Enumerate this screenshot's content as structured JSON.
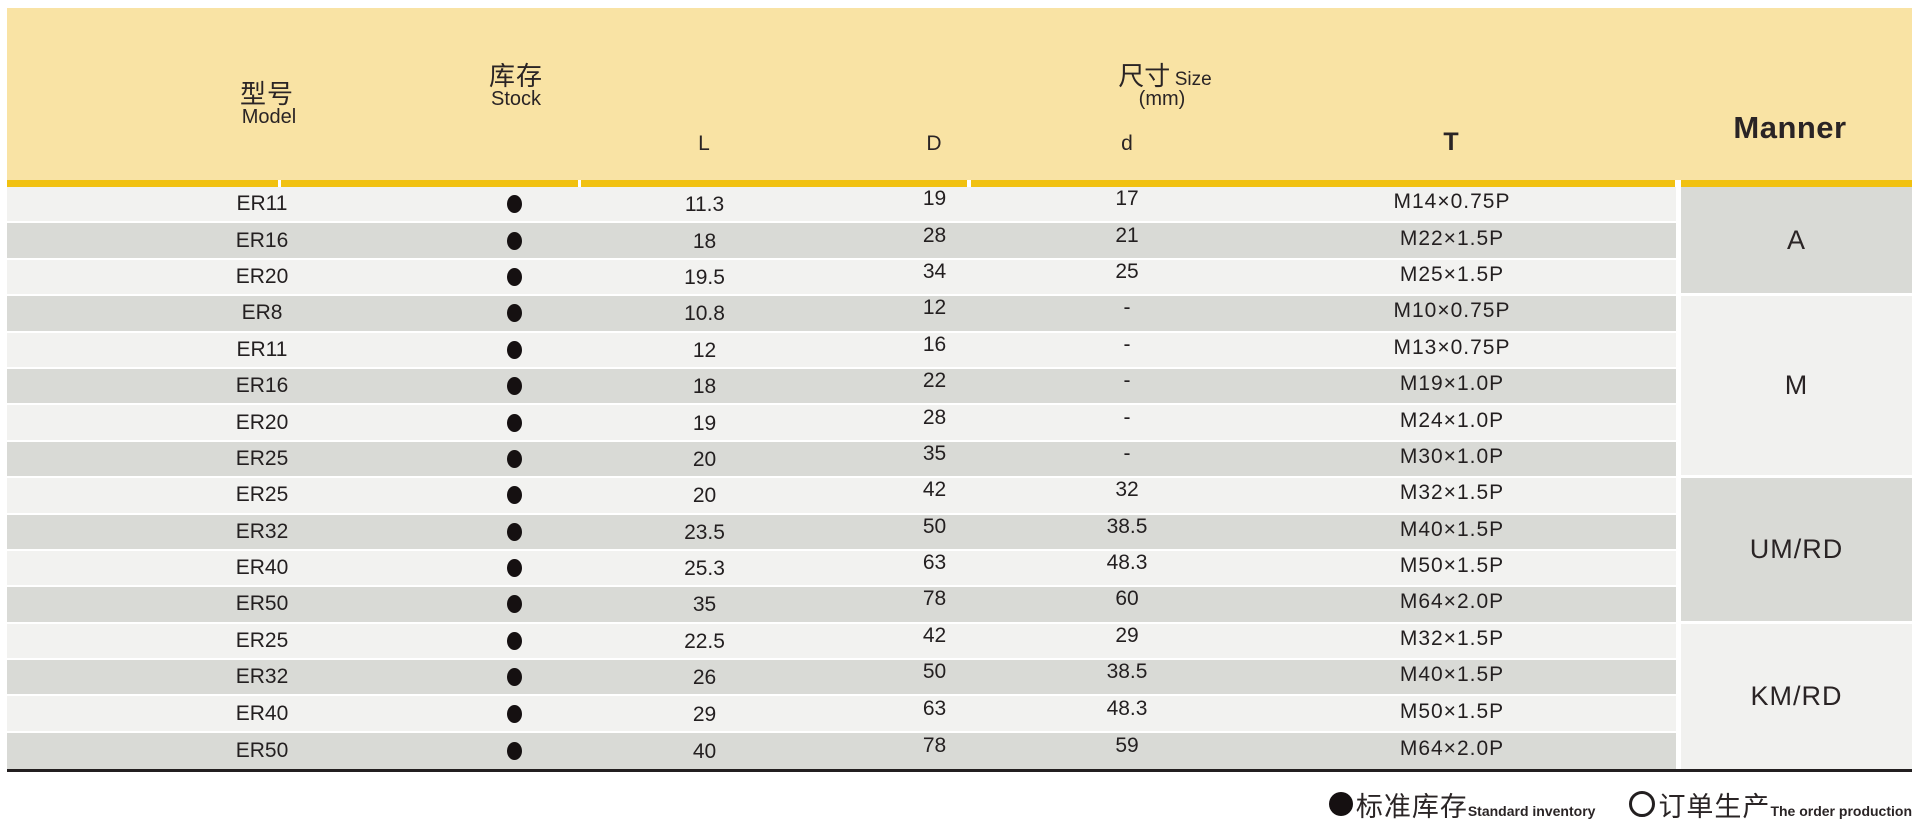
{
  "table": {
    "header": {
      "model_cn": "型号",
      "model_en": "Model",
      "stock_cn": "库存",
      "stock_en": "Stock",
      "size_cn": "尺寸",
      "size_en": "Size",
      "size_unit": "(mm)",
      "col_l": "L",
      "col_d_outer": "D",
      "col_d_inner": "d",
      "col_t": "T",
      "manner": "Manner"
    },
    "rows": [
      {
        "model": "ER11",
        "stock": "filled",
        "l": "11.3",
        "d_outer": "19",
        "d_inner": "17",
        "t": "M14×0.75P"
      },
      {
        "model": "ER16",
        "stock": "filled",
        "l": "18",
        "d_outer": "28",
        "d_inner": "21",
        "t": "M22×1.5P"
      },
      {
        "model": "ER20",
        "stock": "filled",
        "l": "19.5",
        "d_outer": "34",
        "d_inner": "25",
        "t": "M25×1.5P"
      },
      {
        "model": "ER8",
        "stock": "filled",
        "l": "10.8",
        "d_outer": "12",
        "d_inner": "-",
        "t": "M10×0.75P"
      },
      {
        "model": "ER11",
        "stock": "filled",
        "l": "12",
        "d_outer": "16",
        "d_inner": "-",
        "t": "M13×0.75P"
      },
      {
        "model": "ER16",
        "stock": "filled",
        "l": "18",
        "d_outer": "22",
        "d_inner": "-",
        "t": "M19×1.0P"
      },
      {
        "model": "ER20",
        "stock": "filled",
        "l": "19",
        "d_outer": "28",
        "d_inner": "-",
        "t": "M24×1.0P"
      },
      {
        "model": "ER25",
        "stock": "filled",
        "l": "20",
        "d_outer": "35",
        "d_inner": "-",
        "t": "M30×1.0P"
      },
      {
        "model": "ER25",
        "stock": "filled",
        "l": "20",
        "d_outer": "42",
        "d_inner": "32",
        "t": "M32×1.5P"
      },
      {
        "model": "ER32",
        "stock": "filled",
        "l": "23.5",
        "d_outer": "50",
        "d_inner": "38.5",
        "t": "M40×1.5P"
      },
      {
        "model": "ER40",
        "stock": "filled",
        "l": "25.3",
        "d_outer": "63",
        "d_inner": "48.3",
        "t": "M50×1.5P"
      },
      {
        "model": "ER50",
        "stock": "filled",
        "l": "35",
        "d_outer": "78",
        "d_inner": "60",
        "t": "M64×2.0P"
      },
      {
        "model": "ER25",
        "stock": "filled",
        "l": "22.5",
        "d_outer": "42",
        "d_inner": "29",
        "t": "M32×1.5P"
      },
      {
        "model": "ER32",
        "stock": "filled",
        "l": "26",
        "d_outer": "50",
        "d_inner": "38.5",
        "t": "M40×1.5P"
      },
      {
        "model": "ER40",
        "stock": "filled",
        "l": "29",
        "d_outer": "63",
        "d_inner": "48.3",
        "t": "M50×1.5P"
      },
      {
        "model": "ER50",
        "stock": "filled",
        "l": "40",
        "d_outer": "78",
        "d_inner": "59",
        "t": "M64×2.0P"
      }
    ],
    "manner_groups": [
      {
        "label": "A",
        "rows": 3,
        "shade": "dark"
      },
      {
        "label": "M",
        "rows": 5,
        "shade": "light"
      },
      {
        "label": "UM/RD",
        "rows": 4,
        "shade": "dark"
      },
      {
        "label": "KM/RD",
        "rows": 4,
        "shade": "light"
      }
    ]
  },
  "legend": {
    "standard_cn": "标准库存",
    "standard_en": "Standard inventory",
    "order_cn": "订单生产",
    "order_en": "The order production"
  },
  "colors": {
    "header_bg": "#f9e3a4",
    "gold_rule": "#f1c110",
    "row_light": "#f2f2f0",
    "row_dark": "#d9dad6",
    "text": "#231f20",
    "bottom_rule": "#231f20"
  }
}
